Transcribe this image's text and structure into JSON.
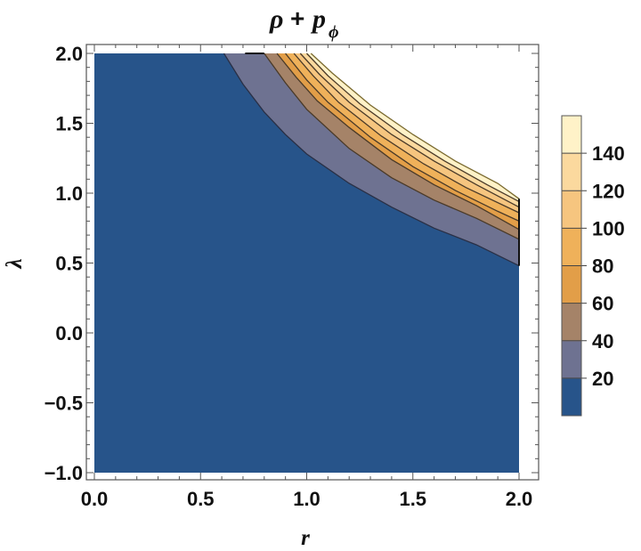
{
  "chart_data": {
    "type": "contour",
    "title": {
      "main": "ρ",
      "operator": "+",
      "symbol": "p",
      "subscript": "ϕ"
    },
    "xlabel": "r",
    "ylabel": "λ",
    "xlim": [
      0.0,
      2.0
    ],
    "ylim": [
      -1.0,
      2.0
    ],
    "x_ticks": [
      "0.0",
      "0.5",
      "1.0",
      "1.5",
      "2.0"
    ],
    "y_ticks": [
      "−1.0",
      "−0.5",
      "0.0",
      "0.5",
      "1.0",
      "1.5",
      "2.0"
    ],
    "contour_levels": [
      20,
      40,
      60,
      80,
      100,
      120,
      140
    ],
    "legend": {
      "placement": "right",
      "labels": [
        "20",
        "40",
        "60",
        "80",
        "100",
        "120",
        "140"
      ],
      "bands": [
        {
          "from": 0,
          "to": 20,
          "color": "#27548a"
        },
        {
          "from": 20,
          "to": 40,
          "color": "#6e7291"
        },
        {
          "from": 40,
          "to": 60,
          "color": "#a58368"
        },
        {
          "from": 60,
          "to": 80,
          "color": "#e29e48"
        },
        {
          "from": 80,
          "to": 100,
          "color": "#efb15a"
        },
        {
          "from": 100,
          "to": 120,
          "color": "#f6c57f"
        },
        {
          "from": 120,
          "to": 140,
          "color": "#fbd99e"
        },
        {
          "from": 140,
          "to": 160,
          "color": "#fff2c8"
        }
      ]
    },
    "domain_boundaries": [
      {
        "level": 20,
        "points": [
          [
            0.61,
            2.0
          ],
          [
            0.7,
            1.78
          ],
          [
            0.8,
            1.58
          ],
          [
            0.9,
            1.42
          ],
          [
            1.0,
            1.28
          ],
          [
            1.2,
            1.07
          ],
          [
            1.4,
            0.9
          ],
          [
            1.6,
            0.75
          ],
          [
            1.8,
            0.63
          ],
          [
            2.0,
            0.48
          ]
        ]
      },
      {
        "level": 40,
        "points": [
          [
            0.8,
            2.0
          ],
          [
            0.9,
            1.79
          ],
          [
            1.0,
            1.6
          ],
          [
            1.2,
            1.32
          ],
          [
            1.4,
            1.11
          ],
          [
            1.6,
            0.95
          ],
          [
            1.8,
            0.82
          ],
          [
            2.0,
            0.67
          ]
        ]
      },
      {
        "level": 60,
        "points": [
          [
            0.86,
            2.0
          ],
          [
            0.95,
            1.83
          ],
          [
            1.05,
            1.66
          ],
          [
            1.2,
            1.47
          ],
          [
            1.4,
            1.24
          ],
          [
            1.6,
            1.06
          ],
          [
            1.8,
            0.91
          ],
          [
            2.0,
            0.74
          ]
        ]
      },
      {
        "level": 80,
        "points": [
          [
            0.9,
            2.0
          ],
          [
            1.0,
            1.81
          ],
          [
            1.1,
            1.65
          ],
          [
            1.3,
            1.4
          ],
          [
            1.5,
            1.19
          ],
          [
            1.7,
            1.02
          ],
          [
            1.9,
            0.87
          ],
          [
            2.0,
            0.8
          ]
        ]
      },
      {
        "level": 100,
        "points": [
          [
            0.94,
            2.0
          ],
          [
            1.03,
            1.84
          ],
          [
            1.15,
            1.65
          ],
          [
            1.35,
            1.41
          ],
          [
            1.55,
            1.21
          ],
          [
            1.75,
            1.04
          ],
          [
            2.0,
            0.86
          ]
        ]
      },
      {
        "level": 120,
        "points": [
          [
            0.97,
            2.0
          ],
          [
            1.06,
            1.85
          ],
          [
            1.2,
            1.65
          ],
          [
            1.4,
            1.42
          ],
          [
            1.6,
            1.23
          ],
          [
            1.8,
            1.06
          ],
          [
            2.0,
            0.9
          ]
        ]
      },
      {
        "level": 140,
        "points": [
          [
            1.0,
            2.0
          ],
          [
            1.1,
            1.84
          ],
          [
            1.25,
            1.64
          ],
          [
            1.45,
            1.42
          ],
          [
            1.65,
            1.23
          ],
          [
            1.85,
            1.06
          ],
          [
            2.0,
            0.94
          ]
        ]
      }
    ],
    "outer_boundary": [
      [
        1.02,
        2.0
      ],
      [
        1.12,
        1.86
      ],
      [
        1.3,
        1.63
      ],
      [
        1.5,
        1.42
      ],
      [
        1.7,
        1.23
      ],
      [
        1.9,
        1.07
      ],
      [
        2.0,
        0.96
      ]
    ],
    "region_outline": {
      "top_edge_lambda": 2.0,
      "bottom_edge_lambda": -1.0,
      "left_edge_r": 0.0,
      "right_edge_r": 2.0
    }
  }
}
